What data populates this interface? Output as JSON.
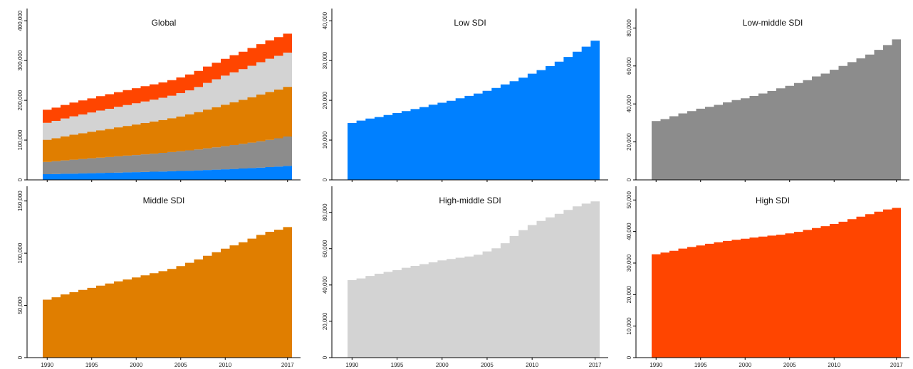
{
  "chart_data": [
    {
      "type": "area",
      "title": "Global",
      "stacked": true,
      "x": [
        1990,
        1991,
        1992,
        1993,
        1994,
        1995,
        1996,
        1997,
        1998,
        1999,
        2000,
        2001,
        2002,
        2003,
        2004,
        2005,
        2006,
        2007,
        2008,
        2009,
        2010,
        2011,
        2012,
        2013,
        2014,
        2015,
        2016,
        2017
      ],
      "series": [
        {
          "color": "#0080ff",
          "values": [
            14300,
            14900,
            15400,
            15800,
            16300,
            16800,
            17300,
            17800,
            18300,
            18900,
            19400,
            19900,
            20500,
            21100,
            21700,
            22400,
            23100,
            24000,
            24800,
            25700,
            26700,
            27600,
            28600,
            29700,
            30900,
            32200,
            33500,
            35000
          ]
        },
        {
          "color": "#8c8c8c",
          "values": [
            31000,
            32000,
            33500,
            35000,
            36200,
            37500,
            38500,
            39500,
            40800,
            42000,
            43000,
            44200,
            45500,
            46800,
            48200,
            49500,
            51000,
            52500,
            54500,
            56000,
            58000,
            60000,
            62000,
            64000,
            66000,
            68500,
            71000,
            74000
          ]
        },
        {
          "color": "#e07e00",
          "values": [
            55500,
            57800,
            60500,
            62700,
            64800,
            66800,
            69000,
            71000,
            73000,
            74800,
            76800,
            78800,
            80800,
            82800,
            85000,
            87700,
            90800,
            94000,
            97500,
            101000,
            104300,
            107500,
            110500,
            114000,
            117500,
            120500,
            122500,
            125000
          ]
        },
        {
          "color": "#d3d3d3",
          "values": [
            42700,
            43600,
            45000,
            46200,
            47200,
            48200,
            49500,
            50500,
            51500,
            52500,
            53500,
            54300,
            55000,
            55700,
            56700,
            58500,
            60200,
            63000,
            67000,
            70200,
            73000,
            75300,
            77200,
            79200,
            81300,
            83300,
            84800,
            86000
          ]
        },
        {
          "color": "#ff4500",
          "values": [
            32800,
            33300,
            33900,
            34600,
            35100,
            35600,
            36100,
            36600,
            37000,
            37400,
            37700,
            38100,
            38400,
            38700,
            39000,
            39400,
            39900,
            40500,
            41100,
            41700,
            42400,
            43100,
            43900,
            44700,
            45500,
            46300,
            47000,
            47500
          ]
        }
      ],
      "xticks": [
        "1990",
        "1995",
        "2000",
        "2005",
        "2010",
        "2017"
      ],
      "yticks": [
        "0",
        "100,000",
        "200,000",
        "300,000",
        "400,000"
      ],
      "ylim": [
        0,
        420000
      ]
    },
    {
      "type": "area",
      "title": "Low SDI",
      "x": [
        1990,
        1991,
        1992,
        1993,
        1994,
        1995,
        1996,
        1997,
        1998,
        1999,
        2000,
        2001,
        2002,
        2003,
        2004,
        2005,
        2006,
        2007,
        2008,
        2009,
        2010,
        2011,
        2012,
        2013,
        2014,
        2015,
        2016,
        2017
      ],
      "series": [
        {
          "color": "#0080ff",
          "values": [
            14300,
            14900,
            15400,
            15800,
            16300,
            16800,
            17300,
            17800,
            18300,
            18900,
            19400,
            19900,
            20500,
            21100,
            21700,
            22400,
            23100,
            24000,
            24800,
            25700,
            26700,
            27600,
            28600,
            29700,
            30900,
            32200,
            33500,
            35000
          ]
        }
      ],
      "xticks": [
        "1990",
        "1995",
        "2000",
        "2005",
        "2010",
        "2017"
      ],
      "yticks": [
        "0",
        "10,000",
        "20,000",
        "30,000",
        "40,000"
      ],
      "ylim": [
        0,
        42000
      ]
    },
    {
      "type": "area",
      "title": "Low-middle SDI",
      "x": [
        1990,
        1991,
        1992,
        1993,
        1994,
        1995,
        1996,
        1997,
        1998,
        1999,
        2000,
        2001,
        2002,
        2003,
        2004,
        2005,
        2006,
        2007,
        2008,
        2009,
        2010,
        2011,
        2012,
        2013,
        2014,
        2015,
        2016,
        2017
      ],
      "series": [
        {
          "color": "#8c8c8c",
          "values": [
            31000,
            32000,
            33500,
            35000,
            36200,
            37500,
            38500,
            39500,
            40800,
            42000,
            43000,
            44200,
            45500,
            46800,
            48200,
            49500,
            51000,
            52500,
            54500,
            56000,
            58000,
            60000,
            62000,
            64000,
            66000,
            68500,
            71000,
            74000
          ]
        }
      ],
      "xticks": [
        "1990",
        "1995",
        "2000",
        "2005",
        "2010",
        "2017"
      ],
      "yticks": [
        "0",
        "20,000",
        "40,000",
        "60,000",
        "80,000"
      ],
      "ylim": [
        0,
        88000
      ]
    },
    {
      "type": "area",
      "title": "Middle SDI",
      "x": [
        1990,
        1991,
        1992,
        1993,
        1994,
        1995,
        1996,
        1997,
        1998,
        1999,
        2000,
        2001,
        2002,
        2003,
        2004,
        2005,
        2006,
        2007,
        2008,
        2009,
        2010,
        2011,
        2012,
        2013,
        2014,
        2015,
        2016,
        2017
      ],
      "series": [
        {
          "color": "#e07e00",
          "values": [
            55500,
            57800,
            60500,
            62700,
            64800,
            66800,
            69000,
            71000,
            73000,
            74800,
            76800,
            78800,
            80800,
            82800,
            85000,
            87700,
            90800,
            94000,
            97500,
            101000,
            104300,
            107500,
            110500,
            114000,
            117500,
            120500,
            122500,
            125000
          ]
        }
      ],
      "xticks": [
        "1990",
        "1995",
        "2000",
        "2005",
        "2010",
        "2017"
      ],
      "yticks": [
        "0",
        "50,000",
        "100,000",
        "150,000"
      ],
      "ylim": [
        0,
        160000
      ]
    },
    {
      "type": "area",
      "title": "High-middle SDI",
      "x": [
        1990,
        1991,
        1992,
        1993,
        1994,
        1995,
        1996,
        1997,
        1998,
        1999,
        2000,
        2001,
        2002,
        2003,
        2004,
        2005,
        2006,
        2007,
        2008,
        2009,
        2010,
        2011,
        2012,
        2013,
        2014,
        2015,
        2016,
        2017
      ],
      "series": [
        {
          "color": "#d3d3d3",
          "values": [
            42700,
            43600,
            45000,
            46200,
            47200,
            48200,
            49500,
            50500,
            51500,
            52500,
            53500,
            54300,
            55000,
            55700,
            56700,
            58500,
            60200,
            63000,
            67000,
            70200,
            73000,
            75300,
            77200,
            79200,
            81300,
            83300,
            84800,
            86000
          ]
        }
      ],
      "xticks": [
        "1990",
        "1995",
        "2000",
        "2005",
        "2010",
        "2017"
      ],
      "yticks": [
        "0",
        "20,000",
        "40,000",
        "60,000",
        "80,000"
      ],
      "ylim": [
        0,
        92000
      ]
    },
    {
      "type": "area",
      "title": "High SDI",
      "x": [
        1990,
        1991,
        1992,
        1993,
        1994,
        1995,
        1996,
        1997,
        1998,
        1999,
        2000,
        2001,
        2002,
        2003,
        2004,
        2005,
        2006,
        2007,
        2008,
        2009,
        2010,
        2011,
        2012,
        2013,
        2014,
        2015,
        2016,
        2017
      ],
      "series": [
        {
          "color": "#ff4500",
          "values": [
            32800,
            33300,
            33900,
            34600,
            35100,
            35600,
            36100,
            36600,
            37000,
            37400,
            37700,
            38100,
            38400,
            38700,
            39000,
            39400,
            39900,
            40500,
            41100,
            41700,
            42400,
            43100,
            43900,
            44700,
            45500,
            46300,
            47000,
            47500
          ]
        }
      ],
      "xticks": [
        "1990",
        "1995",
        "2000",
        "2005",
        "2010",
        "2017"
      ],
      "yticks": [
        "0",
        "10,000",
        "20,000",
        "30,000",
        "40,000",
        "50,000"
      ],
      "ylim": [
        0,
        53000
      ]
    }
  ]
}
